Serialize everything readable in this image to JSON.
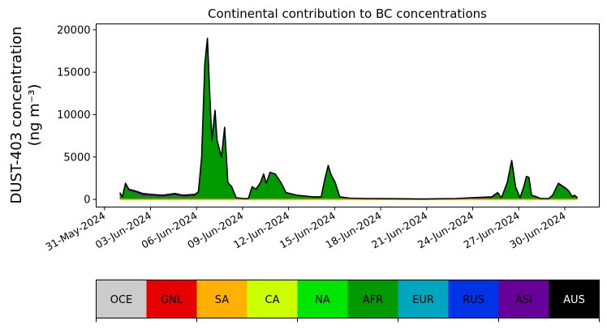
{
  "chart_data": {
    "type": "area",
    "stacked": true,
    "title": "Continental contribution to BC concentrations",
    "ylabel_line1": "DUST-403 concentration",
    "ylabel_line2": "(ng m⁻³)",
    "xlabel": "",
    "ylim": [
      -900,
      20700
    ],
    "xlim": [
      "2024-05-30T11:00",
      "2024-07-02T06:00"
    ],
    "yticks": [
      0,
      5000,
      10000,
      15000,
      20000
    ],
    "ytick_labels": [
      "0",
      "5000",
      "10000",
      "15000",
      "20000"
    ],
    "xticks": [
      "2024-05-31",
      "2024-06-03",
      "2024-06-06",
      "2024-06-09",
      "2024-06-12",
      "2024-06-15",
      "2024-06-18",
      "2024-06-21",
      "2024-06-24",
      "2024-06-27",
      "2024-06-30"
    ],
    "xtick_labels": [
      "31-May-2024",
      "03-Jun-2024",
      "06-Jun-2024",
      "09-Jun-2024",
      "12-Jun-2024",
      "15-Jun-2024",
      "18-Jun-2024",
      "21-Jun-2024",
      "24-Jun-2024",
      "27-Jun-2024",
      "30-Jun-2024"
    ],
    "grid": false,
    "x": [
      "2024-06-01T00:00",
      "2024-06-01T04:00",
      "2024-06-01T09:00",
      "2024-06-01T14:00",
      "2024-06-02T00:00",
      "2024-06-02T12:00",
      "2024-06-03T00:00",
      "2024-06-03T19:00",
      "2024-06-04T14:00",
      "2024-06-05T03:00",
      "2024-06-05T22:00",
      "2024-06-06T03:00",
      "2024-06-06T08:00",
      "2024-06-06T13:00",
      "2024-06-06T17:00",
      "2024-06-06T21:00",
      "2024-06-07T00:00",
      "2024-06-07T05:00",
      "2024-06-07T08:00",
      "2024-06-07T15:00",
      "2024-06-07T20:00",
      "2024-06-08T01:00",
      "2024-06-08T07:00",
      "2024-06-08T14:00",
      "2024-06-09T02:00",
      "2024-06-09T09:00",
      "2024-06-09T15:00",
      "2024-06-09T21:00",
      "2024-06-10T04:00",
      "2024-06-10T09:00",
      "2024-06-10T13:00",
      "2024-06-10T19:00",
      "2024-06-11T03:00",
      "2024-06-11T12:00",
      "2024-06-11T20:00",
      "2024-06-12T13:00",
      "2024-06-13T02:00",
      "2024-06-13T14:00",
      "2024-06-14T03:00",
      "2024-06-14T09:00",
      "2024-06-14T14:00",
      "2024-06-14T18:00",
      "2024-06-15T01:00",
      "2024-06-15T08:00",
      "2024-06-16T00:00",
      "2024-06-17T01:00",
      "2024-06-18T15:00",
      "2024-06-20T18:00",
      "2024-06-22T21:00",
      "2024-06-23T22:00",
      "2024-06-25T06:00",
      "2024-06-25T15:00",
      "2024-06-25T21:00",
      "2024-06-26T06:00",
      "2024-06-26T13:00",
      "2024-06-26T19:00",
      "2024-06-27T02:00",
      "2024-06-27T08:00",
      "2024-06-27T12:00",
      "2024-06-27T16:00",
      "2024-06-27T20:00",
      "2024-06-28T04:00",
      "2024-06-28T10:00",
      "2024-06-28T23:00",
      "2024-06-29T05:00",
      "2024-06-29T14:00",
      "2024-06-30T00:00",
      "2024-06-30T06:00",
      "2024-06-30T12:00",
      "2024-06-30T15:00",
      "2024-06-30T20:00"
    ],
    "series": [
      {
        "name": "AFR",
        "color": "#009900",
        "values": [
          700,
          200,
          1700,
          1000,
          800,
          450,
          400,
          300,
          500,
          300,
          400,
          800,
          4900,
          15900,
          18900,
          11900,
          6900,
          10400,
          6900,
          4900,
          8400,
          1900,
          1400,
          150,
          80,
          80,
          1400,
          1100,
          1900,
          2900,
          1800,
          3100,
          2900,
          1900,
          700,
          400,
          300,
          200,
          200,
          2400,
          3900,
          2900,
          1900,
          200,
          80,
          40,
          30,
          20,
          40,
          80,
          150,
          650,
          100,
          1850,
          4450,
          1400,
          120,
          1400,
          2600,
          2500,
          400,
          200,
          50,
          50,
          400,
          1750,
          1250,
          850,
          200,
          400,
          120
        ]
      },
      {
        "name": "ASI",
        "color": "#660099",
        "values": [
          100,
          100,
          200,
          200,
          200,
          250,
          200,
          200,
          200,
          200,
          200,
          100,
          100,
          100,
          100,
          100,
          100,
          100,
          100,
          100,
          100,
          100,
          100,
          50,
          20,
          20,
          100,
          100,
          100,
          100,
          100,
          100,
          100,
          100,
          100,
          100,
          100,
          100,
          100,
          100,
          100,
          100,
          100,
          100,
          70,
          60,
          50,
          30,
          60,
          120,
          150,
          150,
          100,
          150,
          150,
          100,
          80,
          100,
          100,
          100,
          100,
          100,
          50,
          50,
          100,
          150,
          150,
          150,
          100,
          100,
          80
        ]
      }
    ],
    "total_line_color": "#000000"
  },
  "legend": {
    "items": [
      {
        "label": "OCE",
        "color": "#cccccc",
        "text_color": "#000000"
      },
      {
        "label": "GNL",
        "color": "#e60000",
        "text_color": "#000000"
      },
      {
        "label": "SA",
        "color": "#ffb000",
        "text_color": "#000000"
      },
      {
        "label": "CA",
        "color": "#ccff00",
        "text_color": "#000000"
      },
      {
        "label": "NA",
        "color": "#00e600",
        "text_color": "#000000"
      },
      {
        "label": "AFR",
        "color": "#009900",
        "text_color": "#000000"
      },
      {
        "label": "EUR",
        "color": "#00a5c0",
        "text_color": "#000000"
      },
      {
        "label": "RUS",
        "color": "#0033e6",
        "text_color": "#000000"
      },
      {
        "label": "ASI",
        "color": "#660099",
        "text_color": "#000000"
      },
      {
        "label": "AUS",
        "color": "#000000",
        "text_color": "#ffffff"
      }
    ]
  }
}
